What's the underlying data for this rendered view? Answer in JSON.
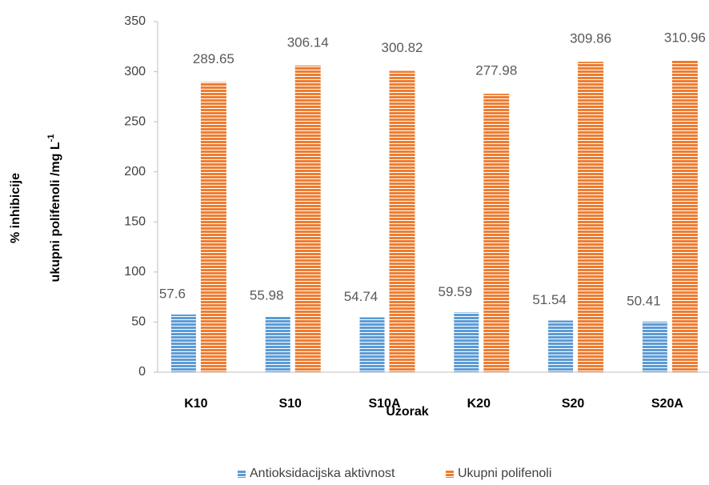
{
  "chart_data": {
    "type": "bar",
    "ylabel": [
      "% inhibicije",
      "ukupni polifenoli /mg L"
    ],
    "ylabel_superscript": "-1",
    "xlabel": "Uzorak",
    "categories": [
      "K10",
      "S10",
      "S10A",
      "K20",
      "S20",
      "S20A"
    ],
    "series": [
      {
        "name": "Antioksidacijska aktivnost",
        "color": "#5b9bd5",
        "values": [
          57.6,
          55.98,
          54.74,
          59.59,
          51.54,
          50.41
        ]
      },
      {
        "name": "Ukupni polifenoli",
        "color": "#ed7d31",
        "values": [
          289.65,
          306.14,
          300.82,
          277.98,
          309.86,
          310.96
        ]
      }
    ],
    "ylim": [
      0,
      350
    ],
    "yticks": [
      0,
      50,
      100,
      150,
      200,
      250,
      300,
      350
    ],
    "grid": false,
    "legend": "bottom"
  }
}
